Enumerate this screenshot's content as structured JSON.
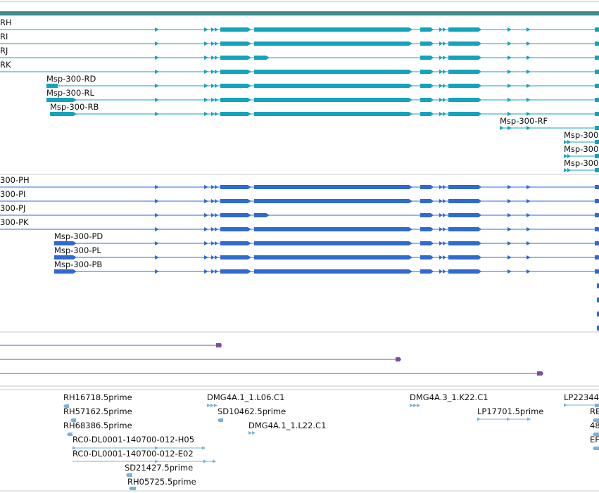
{
  "colors": {
    "header_bar": "#3d8c8c",
    "transcript_a": "#12a4bc",
    "transcript_b": "#2f6ad0",
    "protein": "#7b4ea3",
    "est": "#79b1d8",
    "divider": "#c8c8c8"
  },
  "transcripts_a": [
    {
      "label": "RH"
    },
    {
      "label": "RI"
    },
    {
      "label": "RJ"
    },
    {
      "label": "RK"
    },
    {
      "label": "Msp-300-RD"
    },
    {
      "label": "Msp-300-RL"
    },
    {
      "label": "Msp-300-RB"
    },
    {
      "label": "Msp-300-RF"
    },
    {
      "label": "Msp-300"
    },
    {
      "label": "Msp-300"
    },
    {
      "label": "Msp-300"
    }
  ],
  "transcripts_b": [
    {
      "label": "300-PH"
    },
    {
      "label": "300-PI"
    },
    {
      "label": "300-PJ"
    },
    {
      "label": "300-PK"
    },
    {
      "label": "Msp-300-PD"
    },
    {
      "label": "Msp-300-PL"
    },
    {
      "label": "Msp-300-PB"
    }
  ],
  "ests": [
    {
      "label": "RH16718.5prime"
    },
    {
      "label": "RH57162.5prime"
    },
    {
      "label": "RH68386.5prime"
    },
    {
      "label": "RC0-DL0001-140700-012-H05"
    },
    {
      "label": "RC0-DL0001-140700-012-E02"
    },
    {
      "label": "SD21427.5prime"
    },
    {
      "label": "RH05725.5prime"
    },
    {
      "label": "DMG4A.1_1.L06.C1"
    },
    {
      "label": "SD10462.5prime"
    },
    {
      "label": "DMG4A.1_1.L22.C1"
    },
    {
      "label": "DMG4A.3_1.K22.C1"
    },
    {
      "label": "LP17701.5prime"
    },
    {
      "label": "LP22344"
    },
    {
      "label": "RE"
    },
    {
      "label": "48"
    },
    {
      "label": "EF"
    }
  ]
}
